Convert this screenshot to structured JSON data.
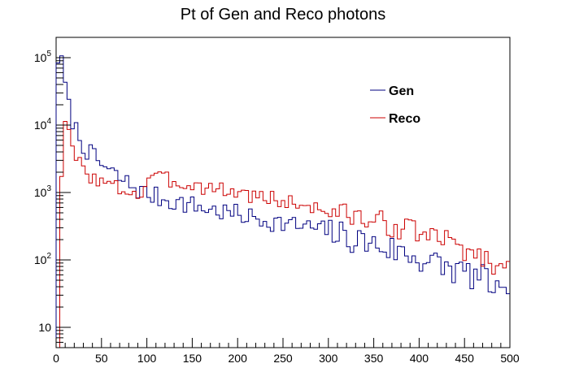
{
  "chart_data": {
    "type": "line",
    "style": "histogram-step",
    "title": "Pt of Gen and Reco photons",
    "xlabel": "",
    "ylabel": "",
    "xlim": [
      0,
      500
    ],
    "ylim": [
      5,
      200000
    ],
    "yscale": "log",
    "grid": false,
    "legend_position": "top-right",
    "bin_width": 4,
    "x_ticks": [
      0,
      50,
      100,
      150,
      200,
      250,
      300,
      350,
      400,
      450,
      500
    ],
    "y_ticks": [
      {
        "value": 10,
        "base": "10",
        "exp": ""
      },
      {
        "value": 100,
        "base": "10",
        "exp": "2"
      },
      {
        "value": 1000,
        "base": "10",
        "exp": "3"
      },
      {
        "value": 10000,
        "base": "10",
        "exp": "4"
      },
      {
        "value": 100000,
        "base": "10",
        "exp": "5"
      }
    ],
    "series": [
      {
        "name": "Gen",
        "color": "#000080",
        "anchors": [
          [
            0,
            0.01
          ],
          [
            2,
            100000
          ],
          [
            6,
            80000
          ],
          [
            10,
            40000
          ],
          [
            14,
            18000
          ],
          [
            18,
            12000
          ],
          [
            22,
            8500
          ],
          [
            26,
            6500
          ],
          [
            30,
            5200
          ],
          [
            34,
            4200
          ],
          [
            40,
            3400
          ],
          [
            46,
            2900
          ],
          [
            50,
            2600
          ],
          [
            56,
            2200
          ],
          [
            60,
            2000
          ],
          [
            70,
            1600
          ],
          [
            80,
            1350
          ],
          [
            90,
            1100
          ],
          [
            100,
            950
          ],
          [
            110,
            860
          ],
          [
            120,
            790
          ],
          [
            130,
            740
          ],
          [
            140,
            690
          ],
          [
            150,
            640
          ],
          [
            160,
            600
          ],
          [
            170,
            560
          ],
          [
            180,
            520
          ],
          [
            200,
            470
          ],
          [
            220,
            410
          ],
          [
            240,
            370
          ],
          [
            260,
            330
          ],
          [
            280,
            300
          ],
          [
            300,
            265
          ],
          [
            320,
            215
          ],
          [
            340,
            185
          ],
          [
            360,
            155
          ],
          [
            380,
            130
          ],
          [
            400,
            105
          ],
          [
            420,
            85
          ],
          [
            440,
            70
          ],
          [
            460,
            58
          ],
          [
            480,
            45
          ],
          [
            500,
            18
          ]
        ],
        "noise_amp": 0.15,
        "seed": 7
      },
      {
        "name": "Reco",
        "color": "#cc0000",
        "anchors": [
          [
            0,
            0.01
          ],
          [
            2,
            0.01
          ],
          [
            4,
            0.01
          ],
          [
            6,
            2000
          ],
          [
            10,
            11000
          ],
          [
            14,
            7000
          ],
          [
            18,
            4200
          ],
          [
            22,
            3200
          ],
          [
            26,
            2700
          ],
          [
            30,
            2300
          ],
          [
            34,
            2000
          ],
          [
            40,
            1700
          ],
          [
            50,
            1400
          ],
          [
            60,
            1250
          ],
          [
            70,
            1150
          ],
          [
            80,
            1050
          ],
          [
            90,
            950
          ],
          [
            96,
            870
          ],
          [
            100,
            1800
          ],
          [
            110,
            1650
          ],
          [
            120,
            1550
          ],
          [
            140,
            1380
          ],
          [
            160,
            1250
          ],
          [
            180,
            1130
          ],
          [
            200,
            1000
          ],
          [
            220,
            880
          ],
          [
            240,
            800
          ],
          [
            260,
            700
          ],
          [
            280,
            620
          ],
          [
            300,
            540
          ],
          [
            320,
            470
          ],
          [
            340,
            400
          ],
          [
            360,
            350
          ],
          [
            380,
            300
          ],
          [
            400,
            255
          ],
          [
            420,
            210
          ],
          [
            440,
            170
          ],
          [
            460,
            125
          ],
          [
            480,
            95
          ],
          [
            490,
            75
          ],
          [
            500,
            68
          ]
        ],
        "noise_amp": 0.12,
        "seed": 3
      }
    ]
  }
}
